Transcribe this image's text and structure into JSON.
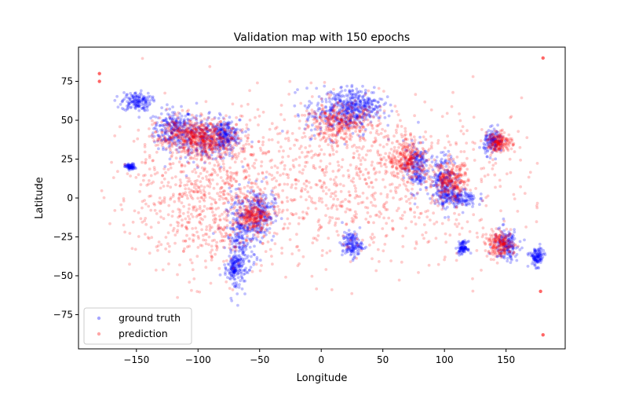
{
  "chart_data": {
    "type": "scatter",
    "title": "Validation map with 150 epochs",
    "xlabel": "Longitude",
    "ylabel": "Latitude",
    "xlim": [
      -197,
      198
    ],
    "ylim": [
      -97,
      97
    ],
    "xticks": [
      -150,
      -100,
      -50,
      0,
      50,
      100,
      150
    ],
    "yticks": [
      -75,
      -50,
      -25,
      0,
      25,
      50,
      75
    ],
    "legend_position": "lower-left",
    "grid": false,
    "colors": {
      "ground_truth": "#0000ff",
      "prediction": "#ff0000"
    },
    "series": [
      {
        "name": "ground truth",
        "marker_alpha": 0.25,
        "clusters": [
          {
            "lon": -120,
            "lat": 45,
            "spread": [
              8,
              6
            ]
          },
          {
            "lon": -95,
            "lat": 38,
            "spread": [
              14,
              7
            ]
          },
          {
            "lon": -78,
            "lat": 40,
            "spread": [
              6,
              5
            ]
          },
          {
            "lon": -150,
            "lat": 62,
            "spread": [
              6,
              3
            ]
          },
          {
            "lon": -155,
            "lat": 20,
            "spread": [
              2,
              1
            ]
          },
          {
            "lon": -65,
            "lat": -25,
            "spread": [
              6,
              14
            ]
          },
          {
            "lon": -70,
            "lat": -45,
            "spread": [
              3,
              5
            ]
          },
          {
            "lon": -50,
            "lat": -10,
            "spread": [
              6,
              8
            ]
          },
          {
            "lon": 15,
            "lat": 55,
            "spread": [
              14,
              8
            ]
          },
          {
            "lon": 30,
            "lat": 60,
            "spread": [
              10,
              5
            ]
          },
          {
            "lon": 25,
            "lat": -30,
            "spread": [
              4,
              4
            ]
          },
          {
            "lon": 77,
            "lat": 20,
            "spread": [
              5,
              8
            ]
          },
          {
            "lon": 100,
            "lat": 12,
            "spread": [
              5,
              8
            ]
          },
          {
            "lon": 110,
            "lat": 0,
            "spread": [
              8,
              3
            ]
          },
          {
            "lon": 140,
            "lat": 36,
            "spread": [
              4,
              4
            ]
          },
          {
            "lon": 150,
            "lat": -30,
            "spread": [
              5,
              5
            ]
          },
          {
            "lon": 115,
            "lat": -32,
            "spread": [
              2,
              2
            ]
          },
          {
            "lon": 175,
            "lat": -38,
            "spread": [
              3,
              3
            ]
          }
        ]
      },
      {
        "name": "prediction",
        "marker_alpha": 0.2,
        "clusters": [
          {
            "lon": -110,
            "lat": 40,
            "spread": [
              12,
              6
            ]
          },
          {
            "lon": -90,
            "lat": 38,
            "spread": [
              12,
              5
            ]
          },
          {
            "lon": -55,
            "lat": -12,
            "spread": [
              6,
              4
            ]
          },
          {
            "lon": 15,
            "lat": 48,
            "spread": [
              15,
              6
            ]
          },
          {
            "lon": 70,
            "lat": 25,
            "spread": [
              8,
              6
            ]
          },
          {
            "lon": 105,
            "lat": 10,
            "spread": [
              7,
              6
            ]
          },
          {
            "lon": 145,
            "lat": 36,
            "spread": [
              5,
              3
            ]
          },
          {
            "lon": 145,
            "lat": -30,
            "spread": [
              6,
              4
            ]
          },
          {
            "lon": 20,
            "lat": 10,
            "spread": [
              70,
              25
            ]
          },
          {
            "lon": -90,
            "lat": 0,
            "spread": [
              30,
              25
            ]
          }
        ],
        "outliers": [
          {
            "lon": 180,
            "lat": 90
          },
          {
            "lon": 180,
            "lat": -88
          },
          {
            "lon": -180,
            "lat": 80
          },
          {
            "lon": -180,
            "lat": 75
          },
          {
            "lon": 178,
            "lat": -60
          }
        ]
      }
    ]
  }
}
